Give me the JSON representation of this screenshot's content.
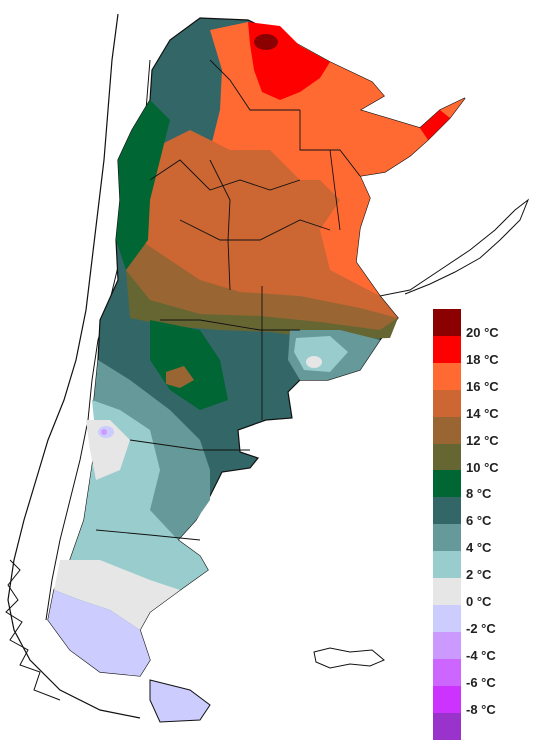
{
  "map": {
    "legend_labels": [
      "20 °C",
      "18 °C",
      "16 °C",
      "14 °C",
      "12 °C",
      "10 °C",
      "8 °C",
      "6 °C",
      "4 °C",
      "2 °C",
      "0 °C",
      "-2 °C",
      "-4 °C",
      "-6 °C",
      "-8 °C"
    ],
    "legend_colors": [
      "#8b0000",
      "#ff0000",
      "#ff6a33",
      "#cc6633",
      "#996633",
      "#666633",
      "#006633",
      "#336666",
      "#669999",
      "#99cccc",
      "#e6e6e6",
      "#ccccff",
      "#cc99ff",
      "#cc66ff",
      "#cc33ff",
      "#9933cc"
    ]
  }
}
